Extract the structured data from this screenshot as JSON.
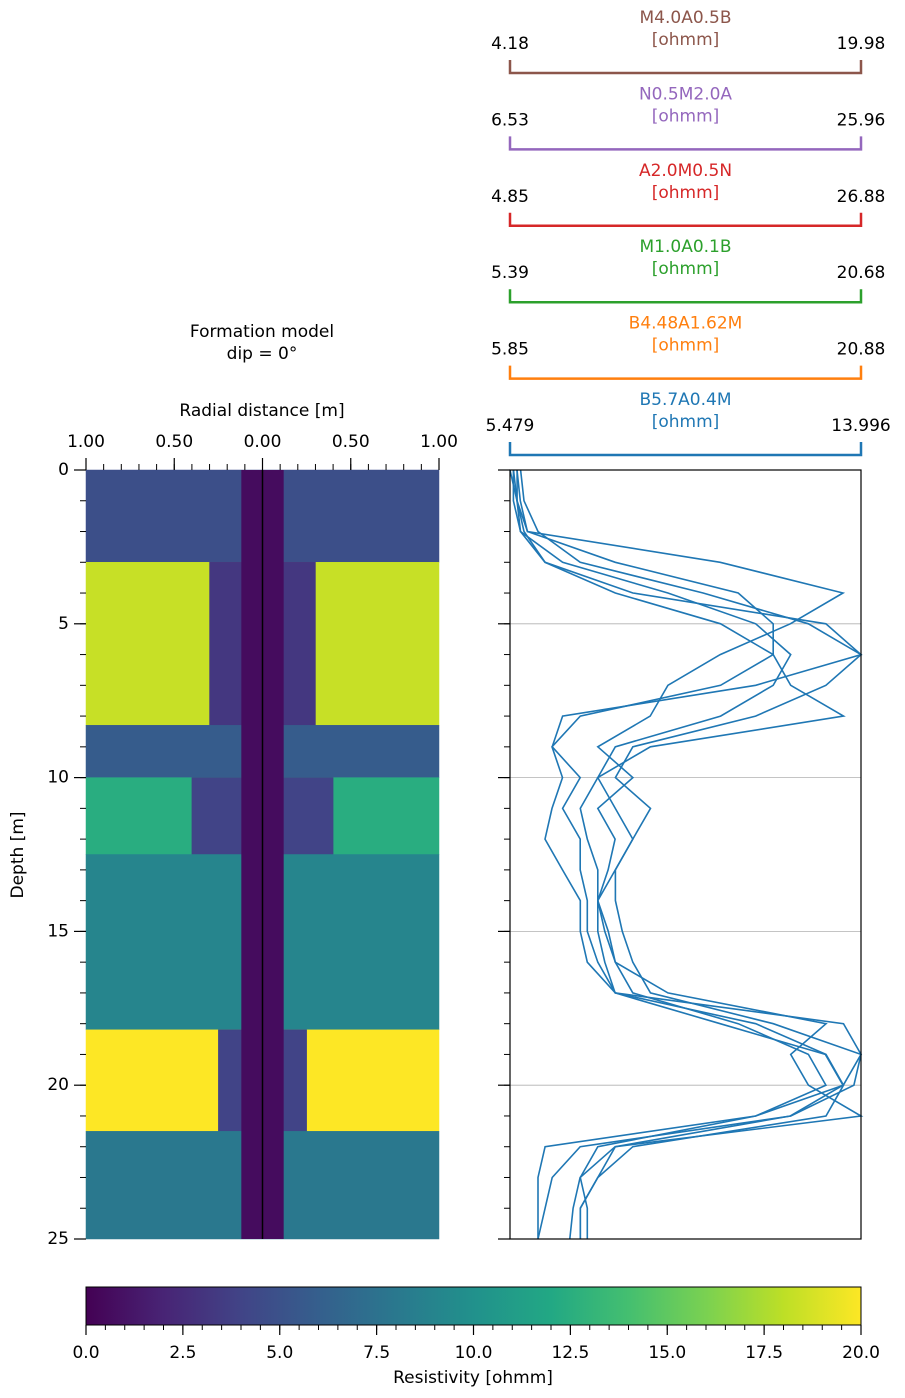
{
  "chart_data": [
    {
      "type": "formation",
      "title": "Formation model",
      "subtitle": "dip = 0°",
      "xlabel": "Radial distance [m]",
      "ylabel": "Depth [m]",
      "xlim": [
        -1,
        1
      ],
      "xticks": [
        {
          "value": -1,
          "label": "1.00"
        },
        {
          "value": -0.5,
          "label": "0.50"
        },
        {
          "value": 0,
          "label": "0.00"
        },
        {
          "value": 0.5,
          "label": "0.50"
        },
        {
          "value": 1,
          "label": "1.00"
        }
      ],
      "xminor_step": 0.1,
      "ylim": [
        0,
        25
      ],
      "y_inverted": true,
      "yticks": [
        0,
        5,
        10,
        15,
        20,
        25
      ],
      "yminor_step": 1,
      "layers": [
        {
          "top": 0,
          "bottom": 3,
          "resistivity": 4.8
        },
        {
          "top": 3,
          "bottom": 8.3,
          "resistivity": 18.3,
          "invasion_radius": 0.3,
          "invasion_resistivity": 3.2
        },
        {
          "top": 8.3,
          "bottom": 10,
          "resistivity": 5.8
        },
        {
          "top": 10,
          "bottom": 12.5,
          "resistivity": 12.4,
          "invasion_radius": 0.4,
          "invasion_resistivity": 4
        },
        {
          "top": 12.5,
          "bottom": 18.2,
          "resistivity": 9
        },
        {
          "top": 18.2,
          "bottom": 21.5,
          "resistivity": 20,
          "invasion_radius": 0.25,
          "invasion_resistivity": 4
        },
        {
          "top": 21.5,
          "bottom": 25,
          "resistivity": 8
        }
      ],
      "borehole_radius": 0.12,
      "borehole_resistivity": 0.6,
      "colorbar": {
        "label": "Resistivity [ohmm]",
        "colormap": "viridis",
        "lim": [
          0,
          20
        ],
        "minor_step": 0.5,
        "ticks": [
          {
            "value": 0,
            "label": "0.0"
          },
          {
            "value": 2.5,
            "label": "2.5"
          },
          {
            "value": 5,
            "label": "5.0"
          },
          {
            "value": 7.5,
            "label": "7.5"
          },
          {
            "value": 10,
            "label": "10.0"
          },
          {
            "value": 12.5,
            "label": "12.5"
          },
          {
            "value": 15,
            "label": "15.0"
          },
          {
            "value": 17.5,
            "label": "17.5"
          },
          {
            "value": 20,
            "label": "20.0"
          }
        ]
      }
    },
    {
      "type": "log",
      "ylim": [
        0,
        25
      ],
      "y_inverted": true,
      "yticks": [
        0,
        5,
        10,
        15,
        20,
        25
      ],
      "yminor_step": 1,
      "grid": true,
      "depth": [
        0,
        1,
        2,
        3,
        4,
        5,
        6,
        7,
        8,
        9,
        10,
        11,
        12,
        13,
        14,
        15,
        16,
        17,
        18,
        19,
        20,
        21,
        22,
        23,
        24,
        25
      ],
      "series": [
        {
          "name": "B5.7A0.4M",
          "unit": "[ohmm]",
          "color": "#1f77b4",
          "axis_color": "#1f77b4",
          "xlim": [
            5.479,
            13.996
          ],
          "values": [
            5.65,
            5.73,
            5.9,
            10.58,
            13.56,
            12.28,
            10.58,
            9.31,
            8.88,
            7.61,
            8.46,
            7.61,
            8.03,
            7.86,
            7.61,
            7.61,
            7.78,
            8.03,
            10.58,
            13.13,
            13.56,
            12.28,
            8.03,
            7.18,
            7.01,
            6.93
          ]
        },
        {
          "name": "B4.48A1.62M",
          "unit": "[ohmm]",
          "color": "#1f77b4",
          "axis_color": "#ff7f0e",
          "xlim": [
            5.85,
            20.88
          ],
          "values": [
            6.0,
            6.15,
            6.6,
            10.36,
            15.62,
            17.12,
            17.12,
            14.87,
            8.86,
            7.65,
            8.1,
            7.65,
            7.35,
            8.1,
            8.86,
            8.86,
            9.16,
            10.36,
            16.37,
            19.38,
            20.13,
            19.38,
            11.11,
            9.61,
            8.86,
            8.86
          ]
        },
        {
          "name": "M1.0A0.1B",
          "unit": "[ohmm]",
          "color": "#1f77b4",
          "axis_color": "#2ca02c",
          "xlim": [
            5.39,
            20.68
          ],
          "values": [
            5.85,
            6.0,
            6.61,
            8.45,
            13.8,
            18.39,
            20.68,
            19.15,
            16.09,
            10.74,
            9.98,
            11.51,
            10.74,
            9.98,
            9.98,
            10.28,
            10.74,
            11.51,
            16.86,
            20.68,
            19.91,
            16.09,
            6.92,
            6.61,
            6.61,
            6.61
          ]
        },
        {
          "name": "A2.0M0.5N",
          "unit": "[ohmm]",
          "color": "#1f77b4",
          "axis_color": "#d62728",
          "xlim": [
            4.85,
            26.88
          ],
          "values": [
            4.85,
            5.29,
            5.51,
            8.15,
            14.76,
            20.27,
            22.47,
            21.37,
            18.07,
            11.46,
            10.36,
            9.26,
            9.7,
            10.36,
            10.36,
            10.8,
            11.46,
            12.56,
            19.17,
            23.58,
            24.68,
            20.27,
            10.36,
            9.26,
            9.7,
            9.7
          ]
        },
        {
          "name": "N0.5M2.0A",
          "unit": "[ohmm]",
          "color": "#1f77b4",
          "axis_color": "#9467bd",
          "xlim": [
            6.53,
            25.96
          ],
          "values": [
            6.72,
            6.72,
            7.11,
            8.47,
            12.36,
            18.19,
            21.1,
            22.07,
            24.99,
            14.3,
            11.39,
            12.36,
            13.33,
            12.36,
            11.39,
            11.97,
            12.36,
            15.27,
            24.02,
            22.07,
            23.05,
            25.96,
            12.36,
            11.39,
            10.42,
            10.42
          ]
        },
        {
          "name": "M4.0A0.5B",
          "unit": "[ohmm]",
          "color": "#1f77b4",
          "axis_color": "#8c564b",
          "xlim": [
            4.18,
            19.98
          ],
          "values": [
            4.5,
            4.5,
            4.81,
            5.76,
            9.71,
            18.4,
            19.98,
            15.24,
            6.55,
            6.08,
            7.34,
            6.55,
            7.34,
            7.34,
            7.66,
            7.66,
            8.13,
            8.92,
            19.19,
            19.98,
            19.66,
            16.82,
            7.34,
            6.08,
            5.76,
            5.44
          ]
        }
      ]
    }
  ]
}
